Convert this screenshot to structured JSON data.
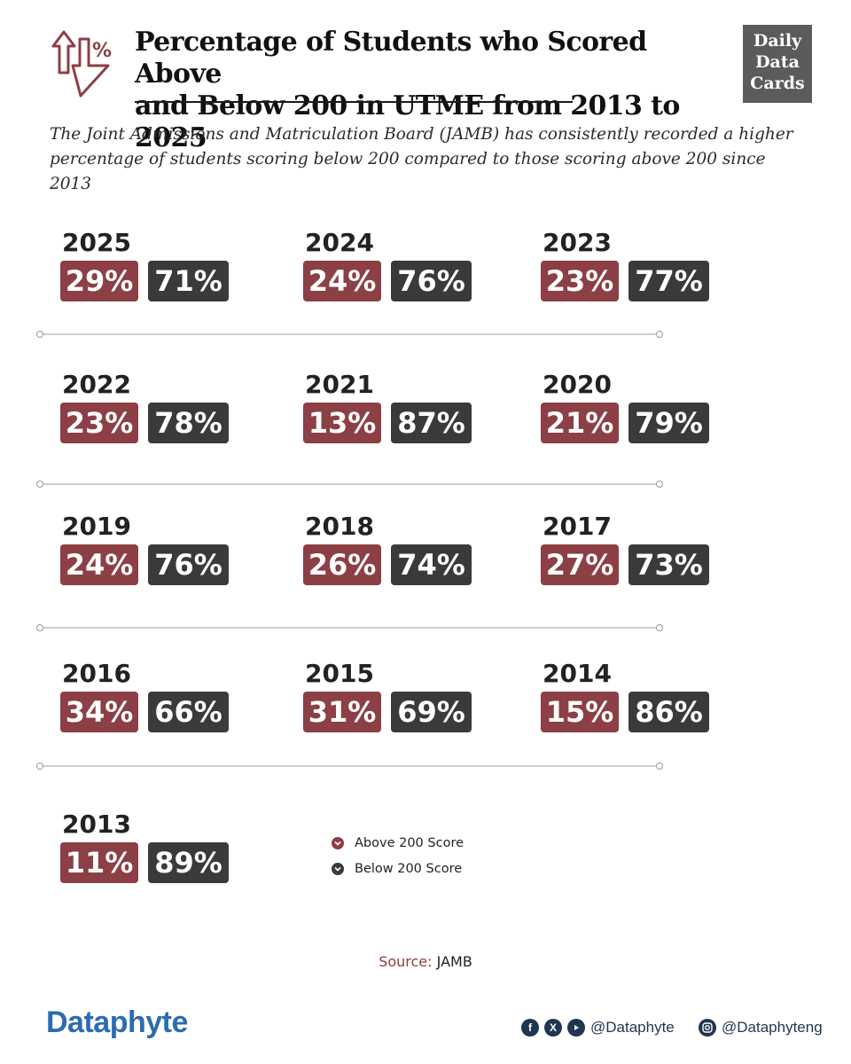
{
  "header": {
    "title_line1": "Percentage of Students who Scored Above",
    "title_line2": "and Below 200 in UTME from 2013 to 2025",
    "subtitle_line1": "The Joint Admissions and Matriculation Board (JAMB) has consistently recorded a higher",
    "subtitle_line2": "percentage of students scoring below 200 compared to those scoring above 200 since 2013",
    "badge": [
      "Daily",
      "Data",
      "Cards"
    ]
  },
  "chart_data": {
    "type": "table",
    "categories": [
      "2025",
      "2024",
      "2023",
      "2022",
      "2021",
      "2020",
      "2019",
      "2018",
      "2017",
      "2016",
      "2015",
      "2014",
      "2013"
    ],
    "series": [
      {
        "name": "Above 200 Score",
        "values": [
          29,
          24,
          23,
          23,
          13,
          21,
          24,
          26,
          27,
          34,
          31,
          15,
          11
        ]
      },
      {
        "name": "Below 200 Score",
        "values": [
          71,
          76,
          77,
          78,
          87,
          79,
          76,
          74,
          73,
          66,
          69,
          86,
          89
        ]
      }
    ],
    "items": [
      {
        "year": "2025",
        "above": "29%",
        "below": "71%"
      },
      {
        "year": "2024",
        "above": "24%",
        "below": "76%"
      },
      {
        "year": "2023",
        "above": "23%",
        "below": "77%"
      },
      {
        "year": "2022",
        "above": "23%",
        "below": "78%"
      },
      {
        "year": "2021",
        "above": "13%",
        "below": "87%"
      },
      {
        "year": "2020",
        "above": "21%",
        "below": "79%"
      },
      {
        "year": "2019",
        "above": "24%",
        "below": "76%"
      },
      {
        "year": "2018",
        "above": "26%",
        "below": "74%"
      },
      {
        "year": "2017",
        "above": "27%",
        "below": "73%"
      },
      {
        "year": "2016",
        "above": "34%",
        "below": "66%"
      },
      {
        "year": "2015",
        "above": "31%",
        "below": "69%"
      },
      {
        "year": "2014",
        "above": "15%",
        "below": "86%"
      },
      {
        "year": "2013",
        "above": "11%",
        "below": "89%"
      }
    ]
  },
  "legend": {
    "above_label": "Above 200 Score",
    "below_label": "Below 200 Score"
  },
  "colors": {
    "above": "#8c3f45",
    "below": "#3a3a3a",
    "brand": "#2b6cb0"
  },
  "footer": {
    "source_key": "Source:",
    "source_value": "JAMB",
    "brand_name": "Dataphyte",
    "handle_main": "@Dataphyte",
    "handle_ig": "@Dataphyteng"
  }
}
